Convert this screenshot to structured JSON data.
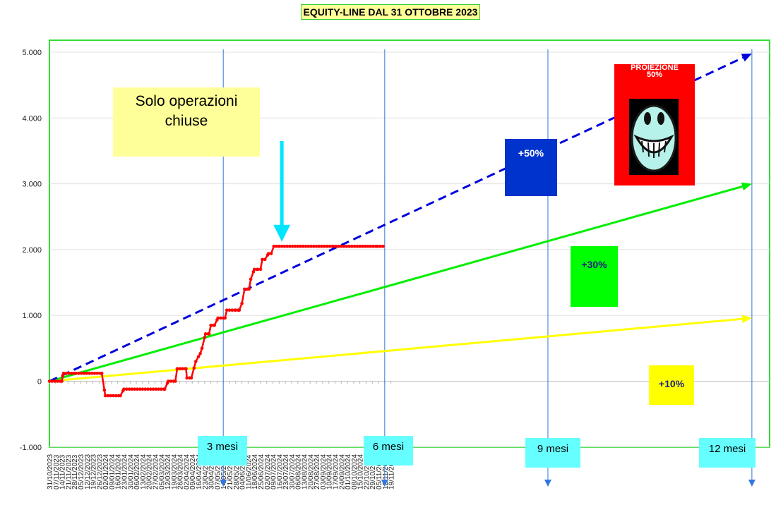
{
  "title": "EQUITY-LINE DAL 31 OTTOBRE 2023",
  "note": {
    "line1": "Solo operazioni",
    "line2": "chiuse"
  },
  "projection": {
    "line1": "PROIEZIONE",
    "line2": "50%"
  },
  "percent_boxes": {
    "p50": "+50%",
    "p30": "+30%",
    "p10": "+10%"
  },
  "month_markers": [
    "3 mesi",
    "6 mesi",
    "9 mesi",
    "12 mesi"
  ],
  "colors": {
    "equity": "#ff0000",
    "proj50": "#0000dd",
    "proj30": "#00ee00",
    "proj10": "#ffff00",
    "plot_border": "#33dd33",
    "marker_line": "#3377dd",
    "highlight_arrow": "#00e5ff"
  },
  "chart_data": {
    "type": "line",
    "title": "EQUITY-LINE DAL 31 OTTOBRE 2023",
    "xlabel": "",
    "ylabel": "",
    "ylim": [
      -1000,
      5000
    ],
    "y_ticks": [
      -1000,
      0,
      1000,
      2000,
      3000,
      4000,
      5000
    ],
    "y_tick_labels": [
      "-1.000",
      "0",
      "1.000",
      "2.000",
      "3.000",
      "4.000",
      "5.000"
    ],
    "x_tick_labels": [
      "31/10/2023",
      "07/11/2023",
      "14/11/2023",
      "21/11/2023",
      "28/11/2023",
      "05/12/2023",
      "12/12/2023",
      "19/12/2023",
      "26/12/2023",
      "02/01/2024",
      "09/01/2024",
      "16/01/2024",
      "23/01/2024",
      "30/01/2024",
      "06/02/2024",
      "13/02/2024",
      "20/02/2024",
      "27/02/2024",
      "05/03/2024",
      "12/03/2024",
      "19/03/2024",
      "26/03/2024",
      "02/04/2024",
      "09/04/2024",
      "16/04/2024",
      "23/04/2024",
      "30/04/2024",
      "07/05/2024",
      "14/05/2024",
      "21/05/2024",
      "28/05/2024",
      "04/06/2024",
      "11/06/2024",
      "18/06/2024",
      "25/06/2024",
      "02/07/2024",
      "09/07/2024",
      "16/07/2024",
      "23/07/2024",
      "30/07/2024",
      "06/08/2024",
      "13/08/2024",
      "20/08/2024",
      "27/08/2024",
      "03/09/2024",
      "10/09/2024",
      "17/09/2024",
      "24/09/2024",
      "01/10/2024",
      "08/10/2024",
      "15/10/2024",
      "22/10/2024",
      "29/10/2024",
      "05/11/2024",
      "12/11/2024",
      "19/11/2024"
    ],
    "series": [
      {
        "kind": "equity",
        "style": "solid-markers",
        "color": "#ff0000",
        "points": [
          [
            0,
            0
          ],
          [
            14,
            0
          ],
          [
            15,
            80
          ],
          [
            16,
            120
          ],
          [
            30,
            120
          ],
          [
            59,
            120
          ],
          [
            63,
            -220
          ],
          [
            80,
            -220
          ],
          [
            84,
            -120
          ],
          [
            130,
            -120
          ],
          [
            134,
            0
          ],
          [
            142,
            0
          ],
          [
            144,
            190
          ],
          [
            154,
            190
          ],
          [
            155,
            50
          ],
          [
            160,
            50
          ],
          [
            165,
            300
          ],
          [
            170,
            420
          ],
          [
            172,
            500
          ],
          [
            176,
            720
          ],
          [
            180,
            720
          ],
          [
            182,
            850
          ],
          [
            186,
            850
          ],
          [
            190,
            960
          ],
          [
            198,
            960
          ],
          [
            200,
            1080
          ],
          [
            210,
            1080
          ],
          [
            214,
            1080
          ],
          [
            217,
            1180
          ],
          [
            220,
            1400
          ],
          [
            225,
            1400
          ],
          [
            227,
            1550
          ],
          [
            231,
            1700
          ],
          [
            235,
            1700
          ],
          [
            238,
            1700
          ],
          [
            240,
            1850
          ],
          [
            243,
            1850
          ],
          [
            247,
            1940
          ],
          [
            250,
            1940
          ],
          [
            253,
            2050
          ],
          [
            320,
            2050
          ],
          [
            370,
            2050
          ],
          [
            378,
            2050
          ]
        ]
      },
      {
        "kind": "proj50",
        "style": "dashed",
        "color": "#0000dd",
        "points": [
          [
            0,
            0
          ],
          [
            792,
            4980
          ]
        ]
      },
      {
        "kind": "proj30",
        "style": "solid",
        "color": "#00ee00",
        "points": [
          [
            0,
            0
          ],
          [
            792,
            3000
          ]
        ]
      },
      {
        "kind": "proj10",
        "style": "solid",
        "color": "#ffff00",
        "points": [
          [
            0,
            0
          ],
          [
            792,
            960
          ]
        ]
      }
    ],
    "vertical_markers_day": [
      196,
      378,
      562,
      792
    ],
    "highlight_arrow": {
      "x": 262,
      "y_from": 3650,
      "y_to": 2120
    },
    "grid": "horizontal",
    "legend": "none"
  }
}
